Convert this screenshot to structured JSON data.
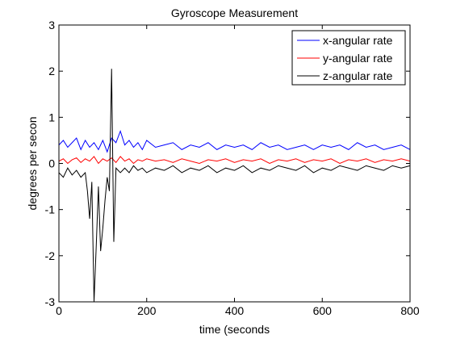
{
  "chart_data": {
    "type": "line",
    "title": "Gyroscope Measurement",
    "xlabel": "time (seconds",
    "ylabel": "degrees per secon",
    "xlim": [
      0,
      800
    ],
    "ylim": [
      -3,
      3
    ],
    "xticks": [
      0,
      200,
      400,
      600,
      800
    ],
    "yticks": [
      -3,
      -2,
      -1,
      0,
      1,
      2,
      3
    ],
    "xtick_labels": [
      "0",
      "200",
      "400",
      "600",
      "800"
    ],
    "ytick_labels": [
      "-3",
      "-2",
      "-1",
      "0",
      "1",
      "2",
      "3"
    ],
    "grid": false,
    "legend_position": "top-right",
    "series": [
      {
        "name": "x-angular rate",
        "color": "#0000ff",
        "x": [
          0,
          10,
          20,
          30,
          40,
          50,
          60,
          70,
          80,
          90,
          100,
          110,
          120,
          130,
          140,
          150,
          160,
          170,
          180,
          190,
          200,
          220,
          240,
          260,
          280,
          300,
          320,
          340,
          360,
          380,
          400,
          420,
          440,
          460,
          480,
          500,
          520,
          540,
          560,
          580,
          600,
          620,
          640,
          660,
          680,
          700,
          720,
          740,
          760,
          780,
          800
        ],
        "y": [
          0.4,
          0.5,
          0.35,
          0.45,
          0.55,
          0.3,
          0.5,
          0.35,
          0.45,
          0.3,
          0.5,
          0.25,
          0.55,
          0.45,
          0.7,
          0.4,
          0.5,
          0.35,
          0.45,
          0.3,
          0.5,
          0.35,
          0.4,
          0.45,
          0.3,
          0.4,
          0.35,
          0.45,
          0.3,
          0.4,
          0.35,
          0.4,
          0.3,
          0.45,
          0.35,
          0.4,
          0.3,
          0.35,
          0.4,
          0.3,
          0.4,
          0.35,
          0.4,
          0.3,
          0.45,
          0.35,
          0.4,
          0.3,
          0.35,
          0.4,
          0.3
        ]
      },
      {
        "name": "y-angular rate",
        "color": "#ff0000",
        "x": [
          0,
          10,
          20,
          30,
          40,
          50,
          60,
          70,
          80,
          90,
          100,
          110,
          120,
          130,
          140,
          150,
          160,
          170,
          180,
          190,
          200,
          220,
          240,
          260,
          280,
          300,
          320,
          340,
          360,
          380,
          400,
          420,
          440,
          460,
          480,
          500,
          520,
          540,
          560,
          580,
          600,
          620,
          640,
          660,
          680,
          700,
          720,
          740,
          760,
          780,
          800
        ],
        "y": [
          0.05,
          0.1,
          0.0,
          0.08,
          0.12,
          0.02,
          0.1,
          0.05,
          0.15,
          0.0,
          0.1,
          0.05,
          0.12,
          0.02,
          0.15,
          0.05,
          0.1,
          0.0,
          0.08,
          0.05,
          0.1,
          0.05,
          0.08,
          0.02,
          0.1,
          0.05,
          0.0,
          0.08,
          0.05,
          0.1,
          0.02,
          0.08,
          0.05,
          0.1,
          0.0,
          0.08,
          0.05,
          0.1,
          0.02,
          0.08,
          0.05,
          0.1,
          0.0,
          0.08,
          0.05,
          0.1,
          0.02,
          0.08,
          0.05,
          0.1,
          0.05
        ]
      },
      {
        "name": "z-angular rate",
        "color": "#000000",
        "x": [
          0,
          10,
          20,
          30,
          40,
          50,
          60,
          65,
          70,
          75,
          80,
          85,
          90,
          95,
          100,
          105,
          110,
          115,
          120,
          125,
          130,
          140,
          150,
          160,
          170,
          180,
          190,
          200,
          220,
          240,
          260,
          280,
          300,
          320,
          340,
          360,
          380,
          400,
          420,
          440,
          460,
          480,
          500,
          520,
          540,
          560,
          580,
          600,
          620,
          640,
          660,
          680,
          700,
          720,
          740,
          760,
          780,
          800
        ],
        "y": [
          -0.2,
          -0.3,
          -0.1,
          -0.25,
          -0.15,
          -0.3,
          -0.2,
          -0.6,
          -1.2,
          -0.4,
          -3.0,
          -1.8,
          -0.5,
          -1.9,
          -1.4,
          -0.8,
          -0.3,
          -0.6,
          2.05,
          -1.7,
          -0.1,
          -0.2,
          -0.1,
          -0.2,
          -0.05,
          -0.15,
          -0.1,
          -0.2,
          -0.1,
          -0.15,
          -0.05,
          -0.2,
          -0.1,
          -0.15,
          -0.05,
          -0.2,
          -0.1,
          -0.15,
          -0.05,
          -0.2,
          -0.1,
          -0.15,
          -0.05,
          -0.1,
          -0.15,
          -0.05,
          -0.2,
          -0.1,
          -0.15,
          -0.05,
          -0.1,
          -0.15,
          -0.05,
          -0.1,
          -0.15,
          -0.05,
          -0.1,
          -0.05
        ]
      }
    ]
  }
}
